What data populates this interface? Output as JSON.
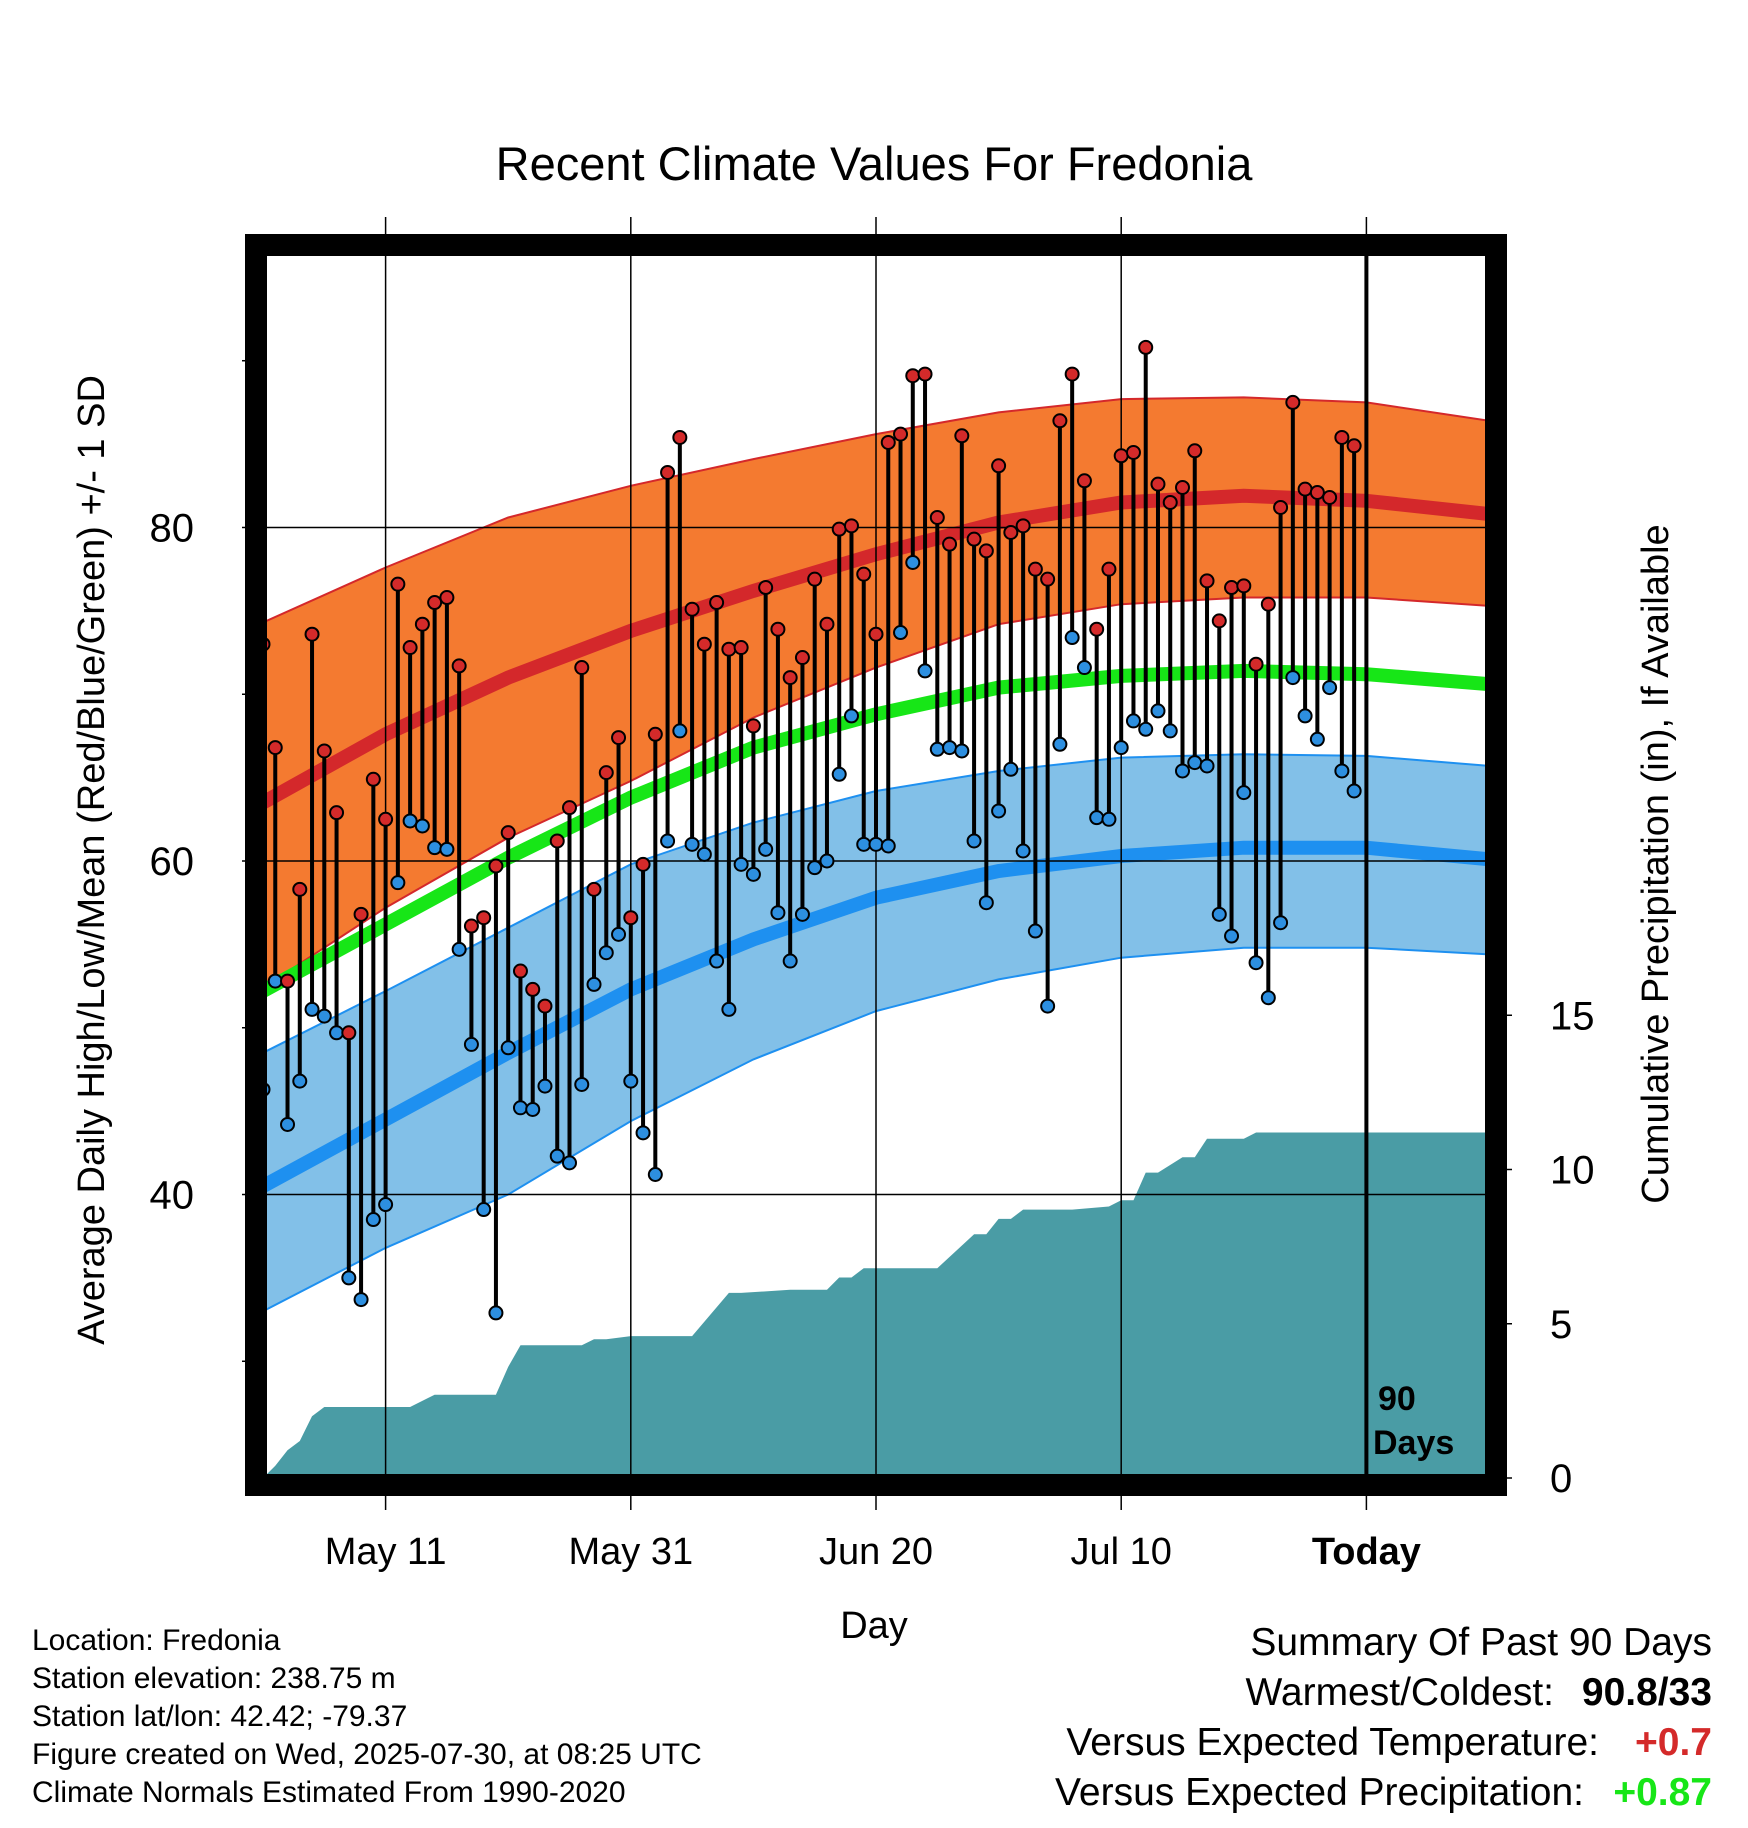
{
  "title": "Recent Climate Values For Fredonia",
  "colors": {
    "high_band": "#f47a30",
    "high_mean": "#d4282b",
    "low_band": "#82c0e8",
    "low_mean": "#1e90f0",
    "mean_line": "#17e617",
    "precip": "#4a9ca5",
    "high_dot": "#d42a2a",
    "low_dot": "#2d8fe0",
    "positive_temp": "#d42a2a",
    "positive_precip": "#17e617"
  },
  "today_marker": {
    "label_line1": "90",
    "label_line2": "Days"
  },
  "info": {
    "location": "Location: Fredonia",
    "elevation": "Station elevation: 238.75 m",
    "latlon": "Station lat/lon: 42.42; -79.37",
    "created": "Figure created on Wed, 2025-07-30, at 08:25 UTC",
    "normals": "Climate Normals Estimated From 1990-2020"
  },
  "summary": {
    "heading": "Summary Of Past 90 Days",
    "warmest_label": "Warmest/Coldest:",
    "warmest_value": "90.8/33",
    "temp_label": "Versus Expected Temperature:",
    "temp_value": "+0.7",
    "precip_label": "Versus Expected Precipitation:",
    "precip_value": "+0.87"
  },
  "chart_data": {
    "type": "line",
    "title": "Recent Climate Values For Fredonia",
    "xlabel": "Day",
    "ylabel": "Average Daily High/Low/Mean (Red/Blue/Green) +/- 1 SD",
    "ylabel_right": "Cumulative Precipitation (in), If Available",
    "x_range_days": [
      0,
      100
    ],
    "today_day": 90,
    "x_ticks": [
      {
        "day": 10,
        "label": "May 11"
      },
      {
        "day": 30,
        "label": "May 31"
      },
      {
        "day": 50,
        "label": "Jun 20"
      },
      {
        "day": 70,
        "label": "Jul 10"
      },
      {
        "day": 90,
        "label": "Today"
      }
    ],
    "y_range": [
      23,
      97
    ],
    "y_ticks_labeled": [
      40,
      60,
      80
    ],
    "y_ticks_minor": [
      30,
      50,
      70,
      90
    ],
    "y2_range": [
      0,
      40
    ],
    "y2_ticks": [
      0,
      5,
      10,
      15
    ],
    "grid": true,
    "normals": {
      "days": [
        0,
        10,
        20,
        30,
        40,
        50,
        60,
        70,
        80,
        90,
        100
      ],
      "high_mean": [
        63.5,
        67.6,
        71.0,
        73.8,
        76.2,
        78.4,
        80.3,
        81.5,
        81.9,
        81.6,
        80.8
      ],
      "high_sd_upper": [
        74.3,
        77.6,
        80.6,
        82.5,
        84.1,
        85.6,
        86.9,
        87.7,
        87.8,
        87.5,
        86.4
      ],
      "high_sd_lower": [
        52.4,
        57.2,
        61.4,
        64.8,
        68.6,
        71.6,
        74.2,
        75.4,
        75.8,
        75.8,
        75.3
      ],
      "mean": [
        52.2,
        56.2,
        60.2,
        63.8,
        66.8,
        68.8,
        70.4,
        71.1,
        71.4,
        71.2,
        70.6
      ],
      "low_mean": [
        40.5,
        44.5,
        48.5,
        52.3,
        55.3,
        57.8,
        59.4,
        60.3,
        60.8,
        60.8,
        60.1
      ],
      "low_sd_upper": [
        48.5,
        52.2,
        56.0,
        59.8,
        62.3,
        64.2,
        65.4,
        66.2,
        66.4,
        66.3,
        65.7
      ],
      "low_sd_lower": [
        33.0,
        36.8,
        40.0,
        44.4,
        48.1,
        51.0,
        52.9,
        54.2,
        54.8,
        54.8,
        54.4
      ]
    },
    "daily": {
      "days": [
        0,
        1,
        2,
        3,
        4,
        5,
        6,
        7,
        8,
        9,
        10,
        11,
        12,
        13,
        14,
        15,
        16,
        17,
        18,
        19,
        20,
        21,
        22,
        23,
        24,
        25,
        26,
        27,
        28,
        29,
        30,
        31,
        32,
        33,
        34,
        35,
        36,
        37,
        38,
        39,
        40,
        41,
        42,
        43,
        44,
        45,
        46,
        47,
        48,
        49,
        50,
        51,
        52,
        53,
        54,
        55,
        56,
        57,
        58,
        59,
        60,
        61,
        62,
        63,
        64,
        65,
        66,
        67,
        68,
        69,
        70,
        71,
        72,
        73,
        74,
        75,
        76,
        77,
        78,
        79,
        80,
        81,
        82,
        83,
        84,
        85,
        86,
        87,
        88,
        89
      ],
      "high": [
        73,
        66.8,
        52.8,
        58.3,
        73.6,
        66.6,
        62.9,
        49.7,
        56.8,
        64.9,
        62.5,
        76.6,
        72.8,
        74.2,
        75.5,
        75.8,
        71.7,
        56.1,
        56.6,
        59.7,
        61.7,
        53.4,
        52.3,
        51.3,
        61.2,
        63.2,
        71.6,
        58.3,
        65.3,
        67.4,
        56.6,
        59.8,
        67.6,
        83.3,
        85.4,
        75.1,
        73.0,
        75.5,
        72.7,
        72.8,
        68.1,
        76.4,
        73.9,
        71.0,
        72.2,
        76.9,
        74.2,
        79.9,
        80.1,
        77.2,
        73.6,
        85.1,
        85.6,
        89.1,
        89.2,
        80.6,
        79.0,
        85.5,
        79.3,
        78.6,
        83.7,
        79.7,
        80.1,
        77.5,
        76.9,
        86.4,
        89.2,
        82.8,
        73.9,
        77.5,
        84.3,
        84.5,
        90.8,
        82.6,
        81.5,
        82.4,
        84.6,
        76.8,
        74.4,
        76.4,
        76.5,
        71.8,
        75.4,
        81.2,
        87.5,
        82.3,
        82.1,
        81.8,
        85.4,
        84.9
      ],
      "low": [
        46.3,
        52.8,
        44.2,
        46.8,
        51.1,
        50.7,
        49.7,
        35.0,
        33.7,
        38.5,
        39.4,
        58.7,
        62.4,
        62.1,
        60.8,
        60.7,
        54.7,
        49.0,
        39.1,
        32.9,
        48.8,
        45.2,
        45.1,
        46.5,
        42.3,
        41.9,
        46.6,
        52.6,
        54.5,
        55.6,
        46.8,
        43.7,
        41.2,
        61.2,
        67.8,
        61.0,
        60.4,
        54.0,
        51.1,
        59.8,
        59.2,
        60.7,
        56.9,
        54.0,
        56.8,
        59.6,
        60.0,
        65.2,
        68.7,
        61.0,
        61.0,
        60.9,
        73.7,
        77.9,
        71.4,
        66.7,
        66.8,
        66.6,
        61.2,
        57.5,
        63.0,
        65.5,
        60.6,
        55.8,
        51.3,
        67.0,
        73.4,
        71.6,
        62.6,
        62.5,
        66.8,
        68.4,
        67.9,
        69.0,
        67.8,
        65.4,
        65.9,
        65.7,
        56.8,
        55.5,
        64.1,
        53.9,
        51.8,
        56.3,
        71.0,
        68.7,
        67.3,
        70.4,
        65.4,
        64.2
      ]
    },
    "precip_cumulative": {
      "days": [
        0,
        1,
        2,
        3,
        4,
        5,
        6,
        12,
        14,
        15,
        19,
        20,
        21,
        22,
        26,
        27,
        28,
        30,
        35,
        38,
        39,
        43,
        46,
        47,
        48,
        49,
        50,
        55,
        58,
        59,
        60,
        61,
        62,
        66,
        69,
        70,
        71,
        72,
        73,
        75,
        76,
        77,
        80,
        81,
        85,
        90,
        100
      ],
      "values": [
        0,
        0.4,
        0.9,
        1.2,
        2,
        2.3,
        2.3,
        2.3,
        2.7,
        2.7,
        2.7,
        3.6,
        4.3,
        4.3,
        4.3,
        4.5,
        4.5,
        4.6,
        4.6,
        6.0,
        6.0,
        6.1,
        6.1,
        6.5,
        6.5,
        6.8,
        6.8,
        6.8,
        7.9,
        7.9,
        8.4,
        8.4,
        8.7,
        8.7,
        8.8,
        9.0,
        9.0,
        9.9,
        9.9,
        10.4,
        10.4,
        11.0,
        11.0,
        11.2,
        11.2,
        11.2,
        11.2
      ]
    }
  }
}
